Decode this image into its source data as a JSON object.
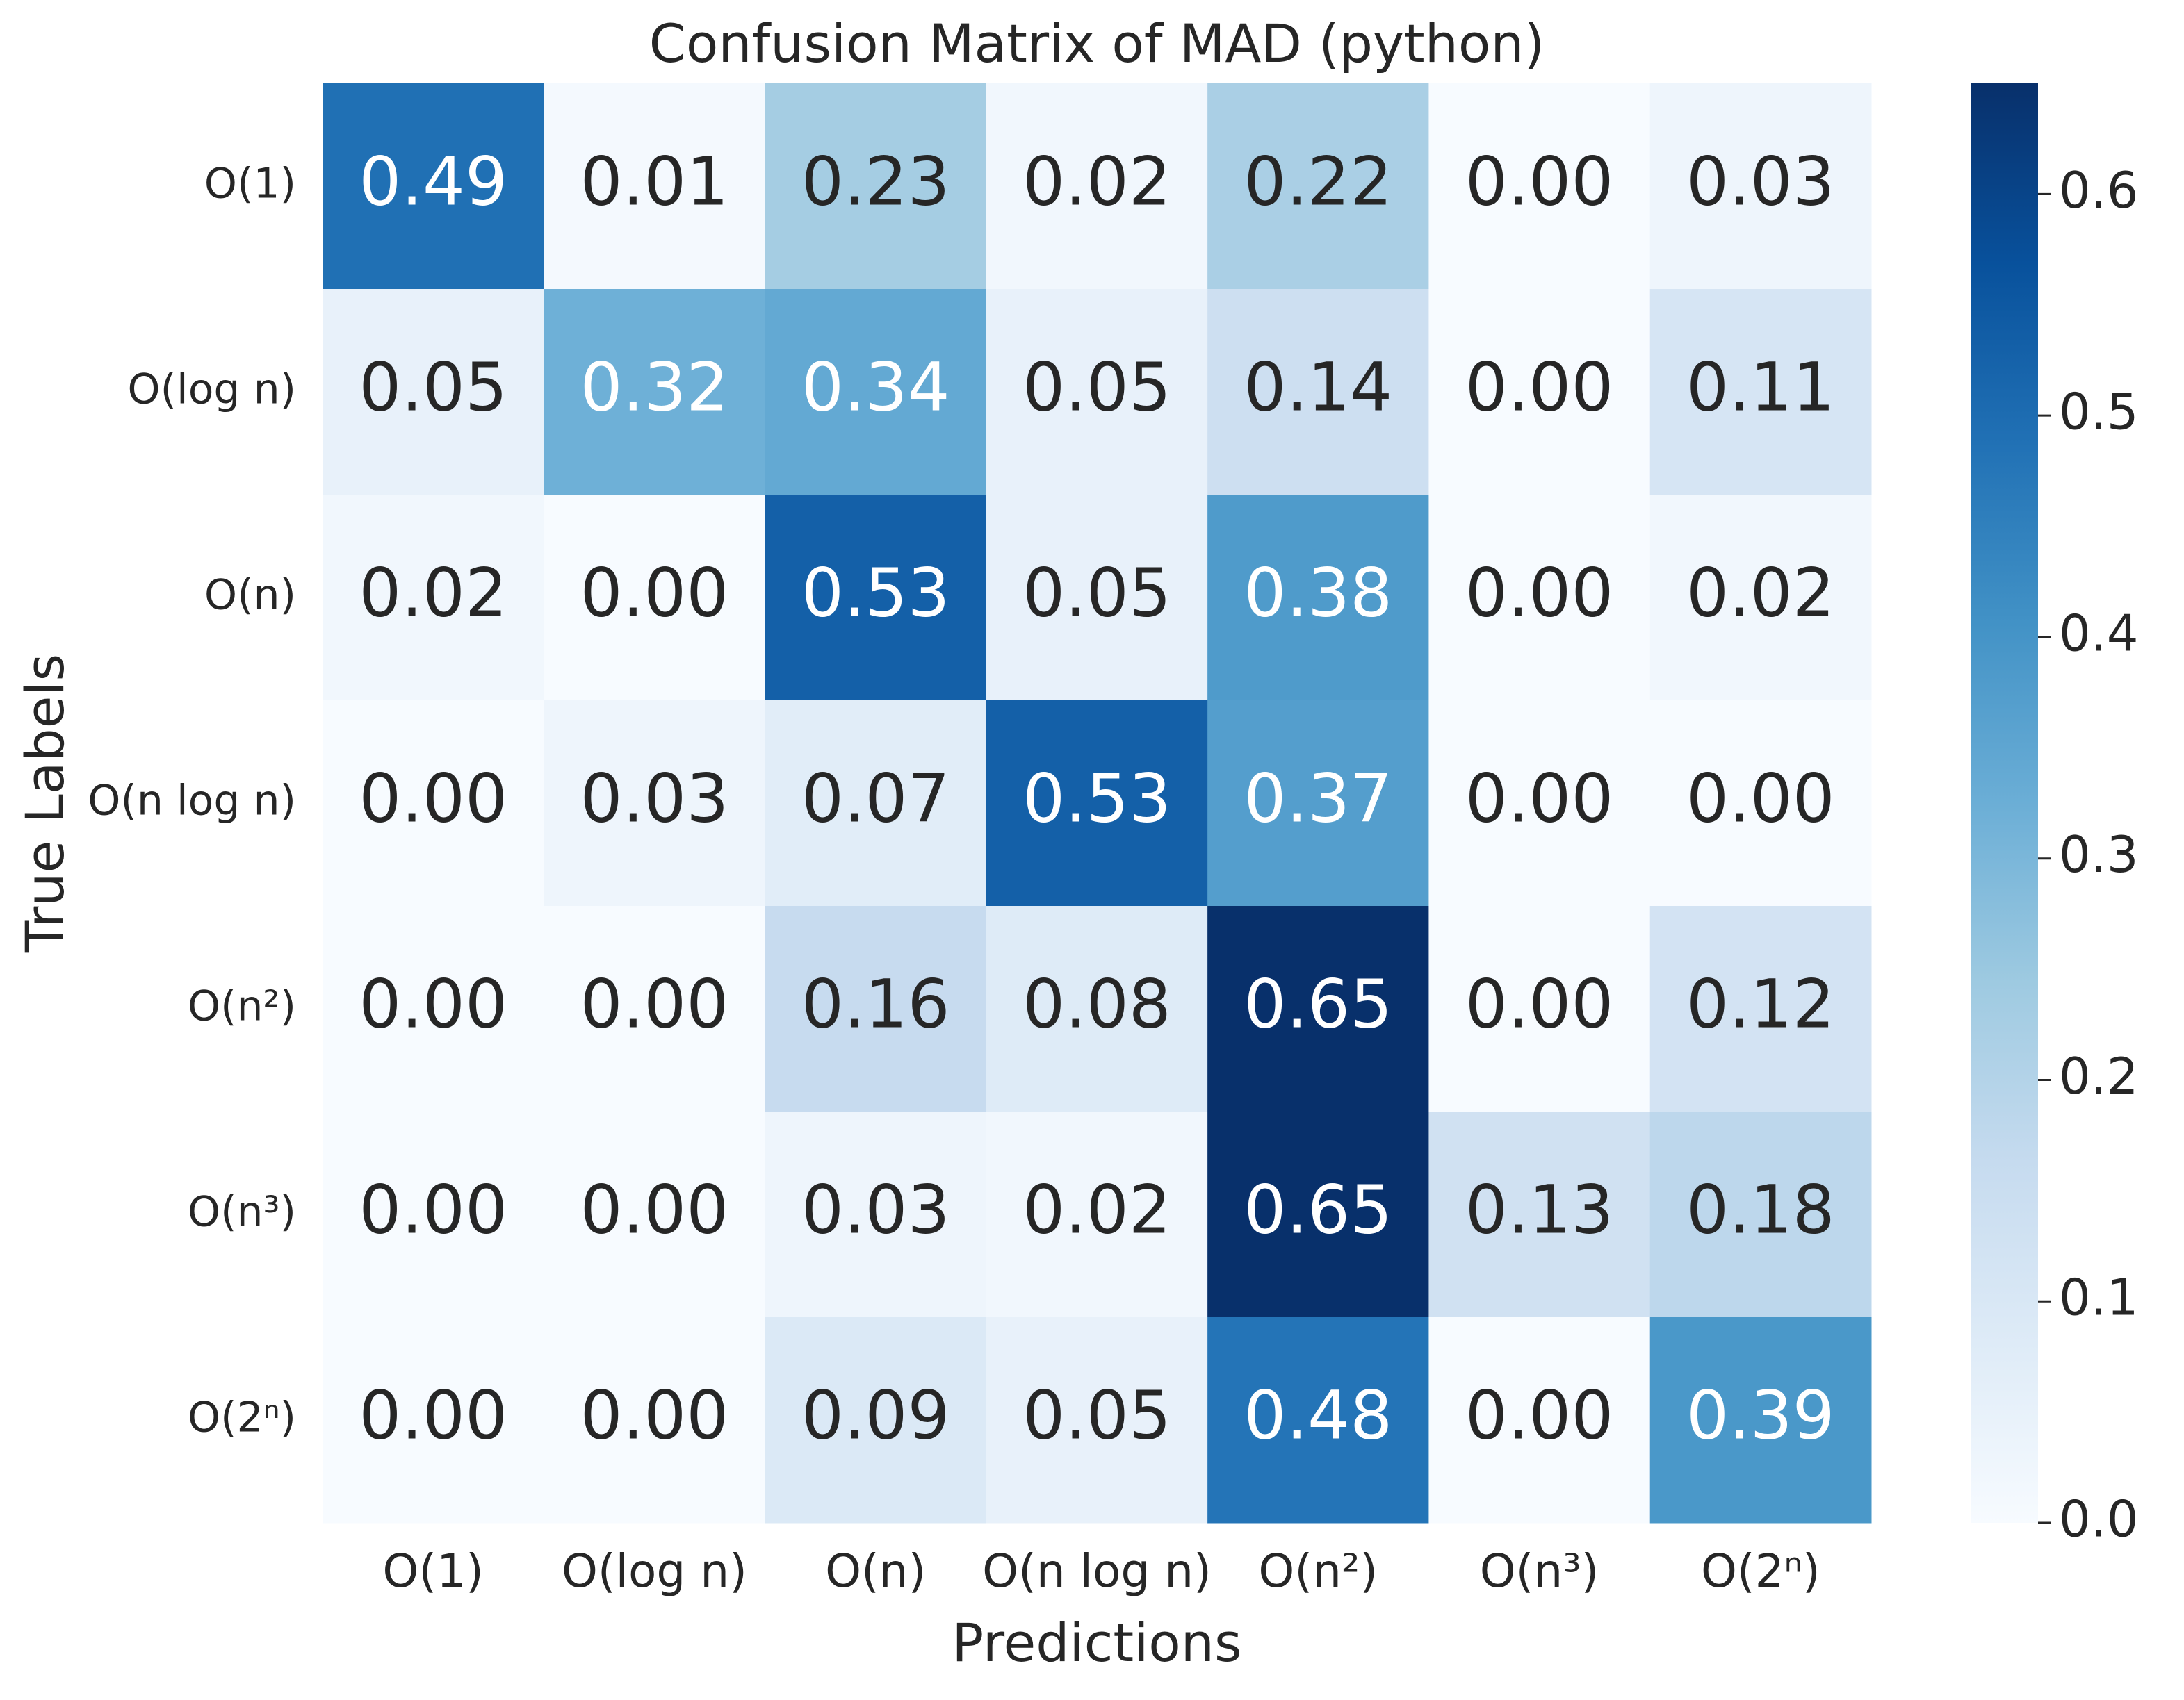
{
  "chart_data": {
    "type": "heatmap",
    "title": "Confusion Matrix of MAD (python)",
    "x_label": "Predictions",
    "y_label": "True Labels",
    "x_categories": [
      "O(1)",
      "O(log n)",
      "O(n)",
      "O(n log n)",
      "O(n²)",
      "O(n³)",
      "O(2ⁿ)"
    ],
    "y_categories": [
      "O(1)",
      "O(log n)",
      "O(n)",
      "O(n log n)",
      "O(n²)",
      "O(n³)",
      "O(2ⁿ)"
    ],
    "values": [
      [
        0.49,
        0.01,
        0.23,
        0.02,
        0.22,
        0,
        0.03
      ],
      [
        0.05,
        0.32,
        0.34,
        0.05,
        0.14,
        0,
        0.11
      ],
      [
        0.02,
        0,
        0.53,
        0.05,
        0.38,
        0,
        0.02
      ],
      [
        0,
        0.03,
        0.07,
        0.53,
        0.37,
        0,
        0
      ],
      [
        0,
        0,
        0.16,
        0.08,
        0.65,
        0,
        0.12
      ],
      [
        0,
        0,
        0.03,
        0.02,
        0.65,
        0.13,
        0.18
      ],
      [
        0,
        0,
        0.09,
        0.05,
        0.48,
        0,
        0.39
      ]
    ],
    "value_labels": [
      [
        "0.49",
        "0.01",
        "0.23",
        "0.02",
        "0.22",
        "0.00",
        "0.03"
      ],
      [
        "0.05",
        "0.32",
        "0.34",
        "0.05",
        "0.14",
        "0.00",
        "0.11"
      ],
      [
        "0.02",
        "0.00",
        "0.53",
        "0.05",
        "0.38",
        "0.00",
        "0.02"
      ],
      [
        "0.00",
        "0.03",
        "0.07",
        "0.53",
        "0.37",
        "0.00",
        "0.00"
      ],
      [
        "0.00",
        "0.00",
        "0.16",
        "0.08",
        "0.65",
        "0.00",
        "0.12"
      ],
      [
        "0.00",
        "0.00",
        "0.03",
        "0.02",
        "0.65",
        "0.13",
        "0.18"
      ],
      [
        "0.00",
        "0.00",
        "0.09",
        "0.05",
        "0.48",
        "0.00",
        "0.39"
      ]
    ],
    "clim": [
      0,
      0.65
    ],
    "cticks": [
      {
        "value": 0,
        "label": "0.0"
      },
      0.1,
      0.2,
      0.3,
      0.4,
      0.5,
      0.6
    ],
    "cmap": [
      "#f7fbff",
      "#deebf7",
      "#c6dbef",
      "#9ecae1",
      "#6baed6",
      "#4292c6",
      "#2171b5",
      "#08519c",
      "#08306b"
    ]
  }
}
